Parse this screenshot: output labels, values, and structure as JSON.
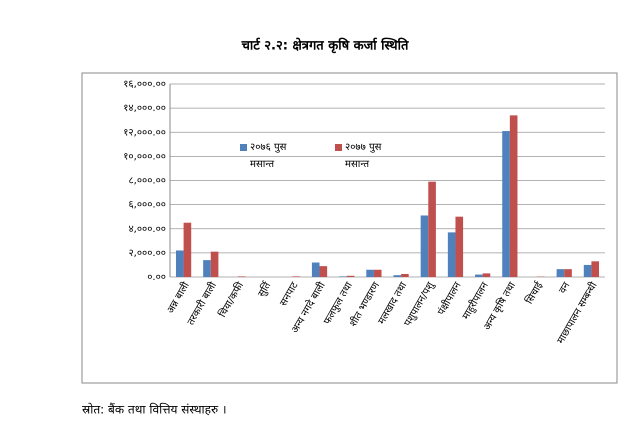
{
  "chart_data": {
    "type": "bar",
    "title": "चार्ट २.२: क्षेत्रगत कृषि कर्जा स्थिति",
    "source": "स्रोत: बैंक तथा वित्तिय संस्थाहरु ।",
    "categories": [
      "अन्न बाली",
      "तरकारी बाली",
      "चिया/कफी",
      "सुर्ति",
      "सनपाट",
      "अन्य नगदे बाली",
      "फलफुल तथा",
      "शीत भण्डारण",
      "मलखाद तथा",
      "पशुपालन/पशु",
      "पंक्षीपालन",
      "माहुरीपालन",
      "अन्य कृषि तथा",
      "सिचाई",
      "वन",
      "माछापालन सम्बन्धी"
    ],
    "series": [
      {
        "name": "२०७६ पुस मसान्त",
        "color": "#4f81bd",
        "values": [
          2200,
          1400,
          0,
          0,
          0,
          1200,
          50,
          600,
          150,
          5100,
          3700,
          200,
          12100,
          0,
          650,
          1000
        ]
      },
      {
        "name": "२०७७ पुस मसान्त",
        "color": "#c0504d",
        "values": [
          4500,
          2100,
          50,
          0,
          50,
          900,
          100,
          600,
          250,
          7900,
          5000,
          300,
          13400,
          30,
          650,
          1300
        ]
      }
    ],
    "ylim": [
      0,
      16000
    ],
    "yticks": [
      {
        "value": 0,
        "label": "०.००"
      },
      {
        "value": 2000,
        "label": "२,०००.००"
      },
      {
        "value": 4000,
        "label": "४,०००.००"
      },
      {
        "value": 6000,
        "label": "६,०००.००"
      },
      {
        "value": 8000,
        "label": "८,०००.००"
      },
      {
        "value": 10000,
        "label": "१०,०००.००"
      },
      {
        "value": 12000,
        "label": "१२,०००.००"
      },
      {
        "value": 14000,
        "label": "१४,०००.००"
      },
      {
        "value": 16000,
        "label": "१६,०००.००"
      }
    ],
    "grid": true
  }
}
